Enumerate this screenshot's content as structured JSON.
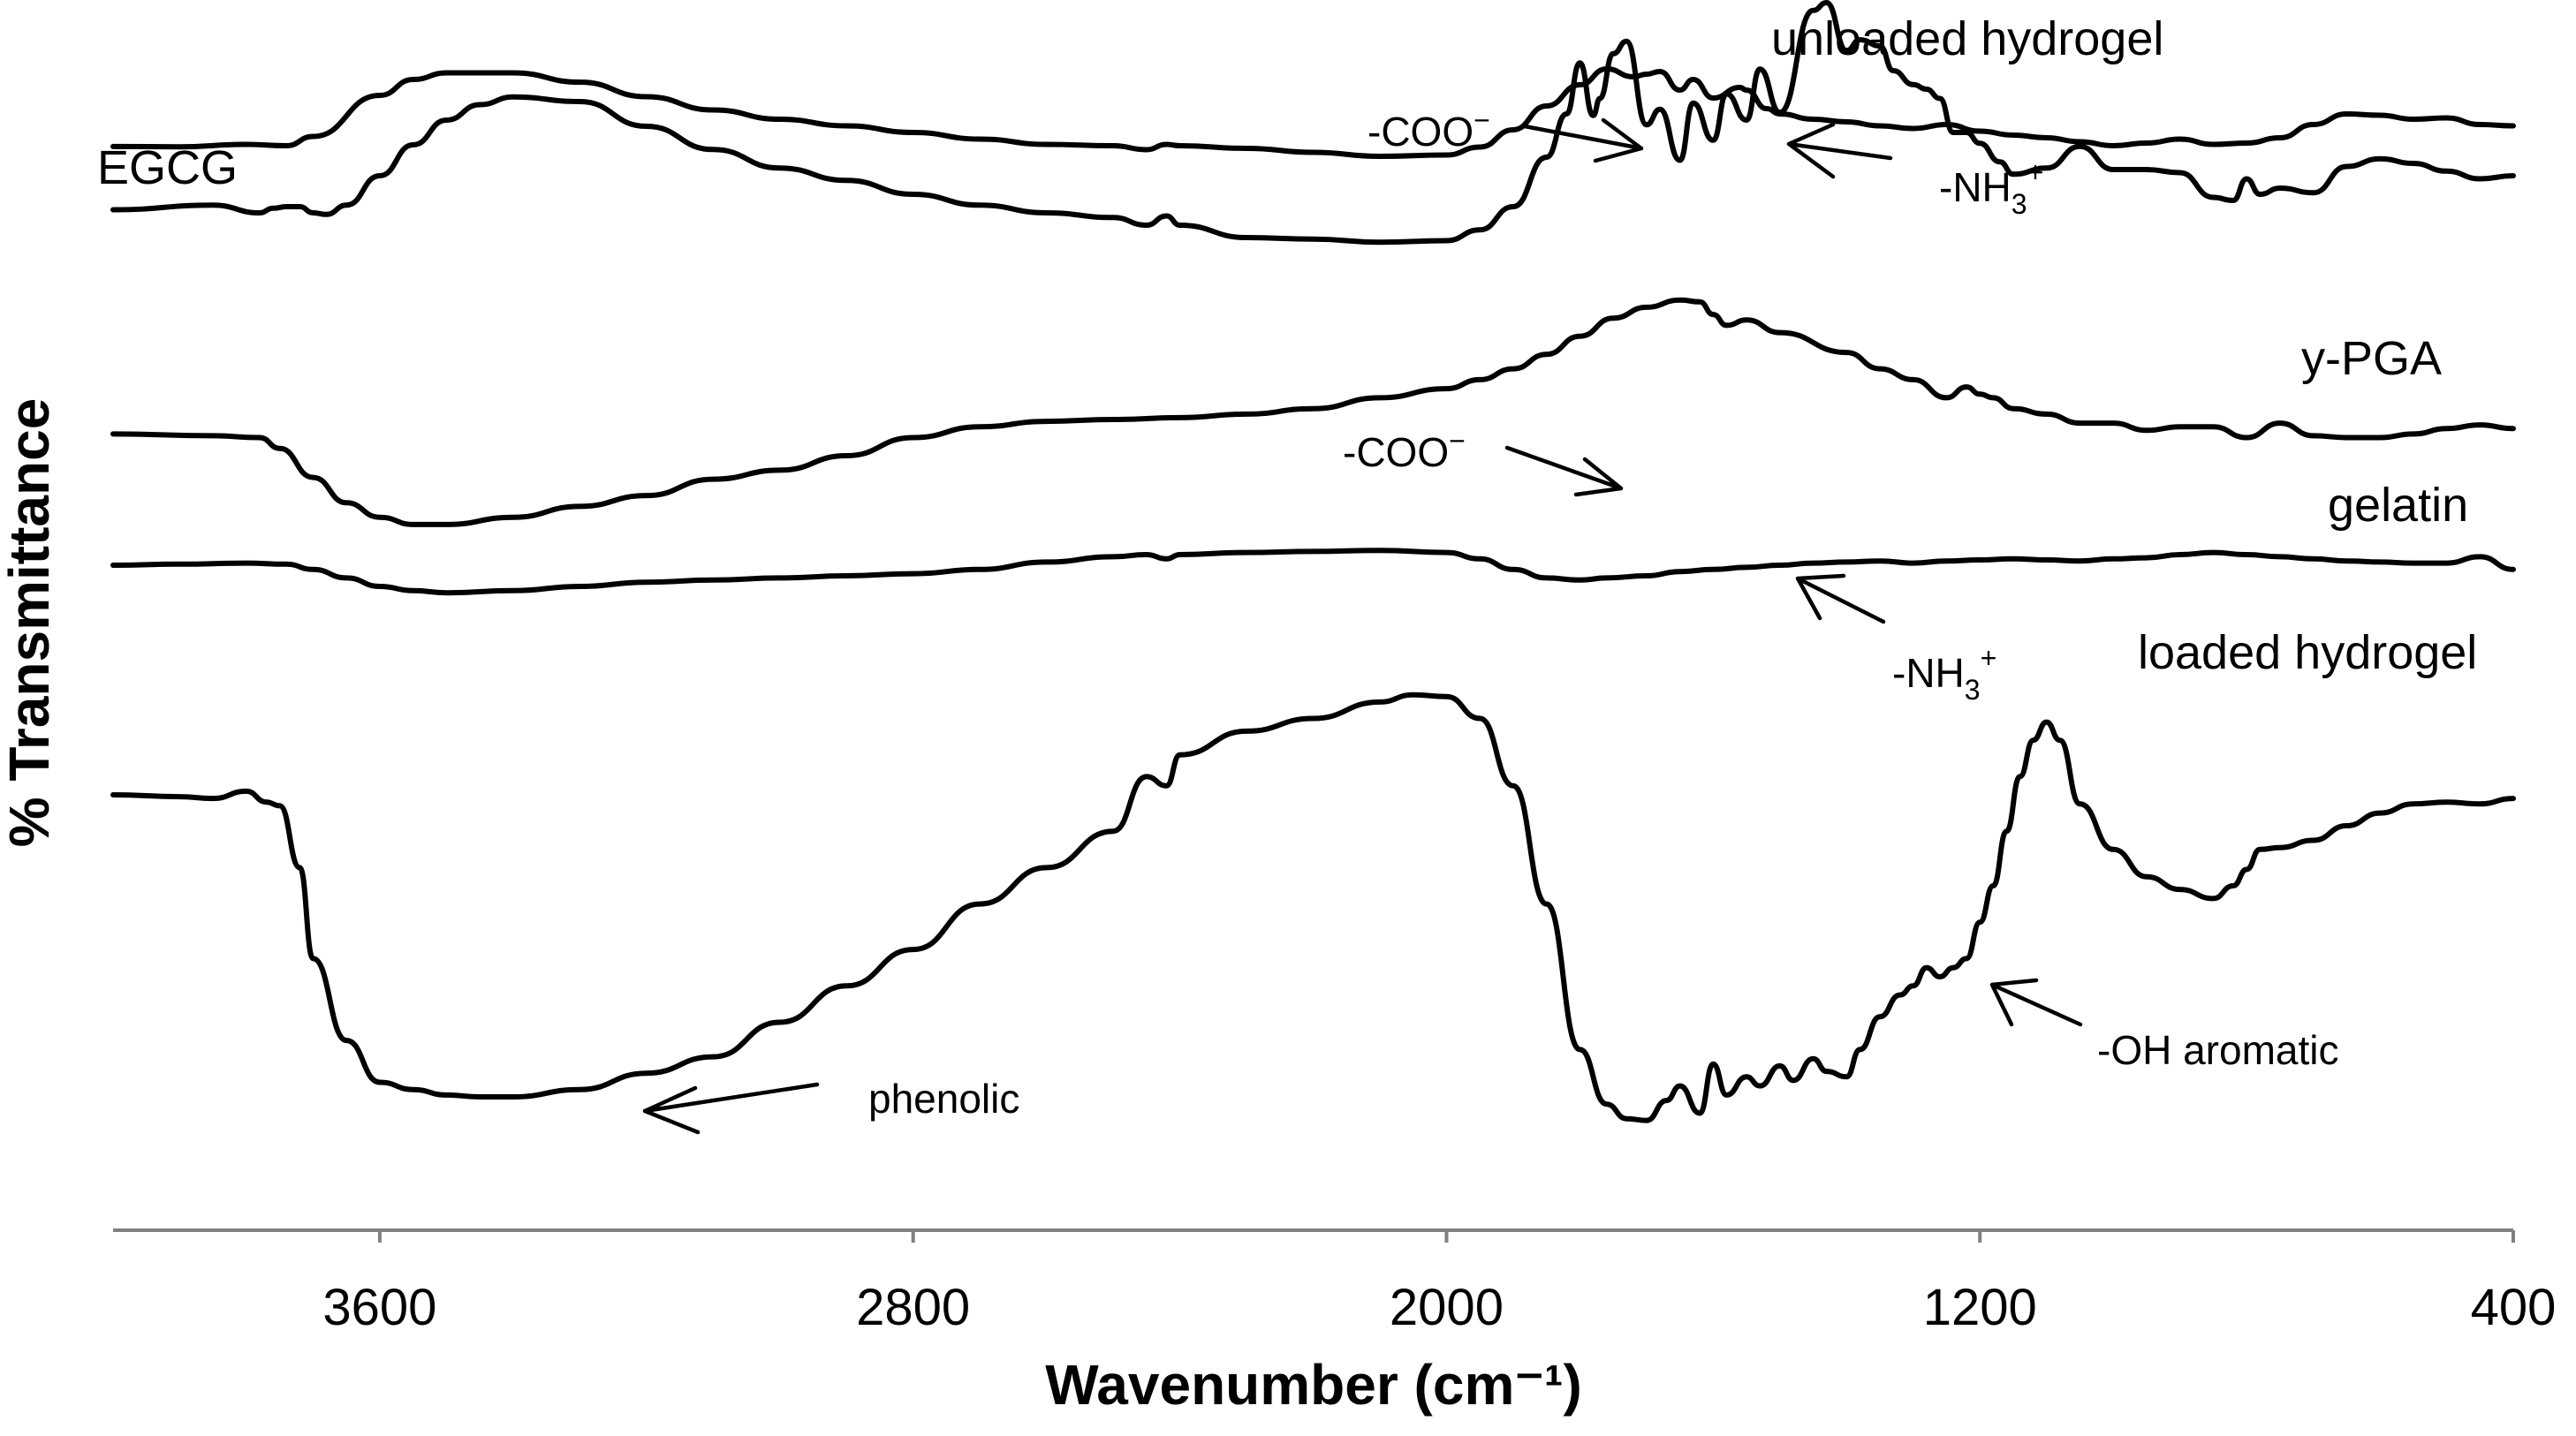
{
  "chart_data": {
    "type": "line",
    "title": "",
    "xlabel": "Wavenumber (cm⁻¹)",
    "ylabel": "% Transmittance",
    "xlim": [
      4000,
      400
    ],
    "xticks": [
      3600,
      2800,
      2000,
      1200,
      400
    ],
    "x_reversed": true,
    "y_units": "arbitrary (stacked offsets)",
    "grid": false,
    "series": [
      {
        "name": "unloaded hydrogel",
        "x": [
          4000,
          3900,
          3800,
          3740,
          3700,
          3600,
          3550,
          3500,
          3400,
          3300,
          3200,
          3100,
          3000,
          2900,
          2800,
          2700,
          2600,
          2500,
          2450,
          2420,
          2400,
          2300,
          2200,
          2100,
          2000,
          1950,
          1900,
          1850,
          1800,
          1760,
          1720,
          1700,
          1680,
          1650,
          1630,
          1600,
          1560,
          1550,
          1520,
          1500,
          1450,
          1400,
          1350,
          1300,
          1250,
          1200,
          1150,
          1100,
          1050,
          1000,
          950,
          900,
          850,
          800,
          750,
          700,
          650,
          600,
          550,
          500,
          450,
          400
        ],
        "y": [
          0.7,
          0.6,
          1.5,
          1.0,
          4.5,
          20.0,
          26.0,
          28.5,
          28.5,
          25.0,
          19.5,
          14.5,
          11.0,
          8.5,
          6.0,
          3.5,
          1.5,
          1.0,
          -0.5,
          1.5,
          1.0,
          0.0,
          -1.5,
          -3.0,
          -2.5,
          0.5,
          7.0,
          16.0,
          24.0,
          30.0,
          27.0,
          28.0,
          29.0,
          22.0,
          26.0,
          19.0,
          23.0,
          22.0,
          15.0,
          13.0,
          11.0,
          10.0,
          8.5,
          7.5,
          9.0,
          6.5,
          5.0,
          4.0,
          2.5,
          1.0,
          2.0,
          3.5,
          1.5,
          2.0,
          4.0,
          9.0,
          13.0,
          12.5,
          11.0,
          11.5,
          9.0,
          8.5
        ]
      },
      {
        "name": "EGCG",
        "x": [
          4000,
          3850,
          3780,
          3760,
          3740,
          3720,
          3700,
          3680,
          3650,
          3600,
          3550,
          3500,
          3450,
          3400,
          3300,
          3200,
          3100,
          3000,
          2900,
          2800,
          2700,
          2600,
          2500,
          2450,
          2420,
          2400,
          2300,
          2200,
          2100,
          2000,
          1950,
          1900,
          1850,
          1820,
          1800,
          1780,
          1770,
          1750,
          1730,
          1700,
          1680,
          1650,
          1630,
          1600,
          1580,
          1550,
          1530,
          1500,
          1450,
          1430,
          1400,
          1380,
          1350,
          1330,
          1300,
          1280,
          1260,
          1240,
          1220,
          1200,
          1170,
          1150,
          1100,
          1050,
          1000,
          950,
          900,
          850,
          820,
          800,
          780,
          750,
          700,
          650,
          600,
          550,
          500,
          450,
          400
        ],
        "y": [
          46,
          49,
          44,
          47,
          48,
          48,
          44,
          43,
          49,
          68,
          88,
          104,
          114,
          119,
          116,
          100,
          85,
          73,
          65,
          56,
          49,
          44,
          41,
          36,
          42,
          36,
          28,
          27,
          25,
          26,
          33,
          48,
          80,
          108,
          141,
          107,
          118,
          147,
          155,
          101,
          111,
          78,
          115,
          91,
          121,
          104,
          137,
          109,
          175,
          180,
          149,
          156,
          152,
          136,
          127,
          124,
          118,
          96,
          96,
          89,
          77,
          69,
          73,
          87,
          72,
          72,
          70,
          54,
          52,
          66,
          56,
          60,
          57,
          74,
          79,
          76,
          71,
          66,
          68
        ]
      },
      {
        "name": "y-PGA",
        "x": [
          4000,
          3850,
          3780,
          3750,
          3700,
          3650,
          3600,
          3550,
          3500,
          3400,
          3300,
          3200,
          3100,
          3000,
          2900,
          2800,
          2700,
          2600,
          2500,
          2400,
          2300,
          2200,
          2100,
          2000,
          1950,
          1900,
          1850,
          1800,
          1750,
          1700,
          1650,
          1620,
          1600,
          1580,
          1550,
          1500,
          1400,
          1350,
          1300,
          1250,
          1220,
          1200,
          1180,
          1150,
          1100,
          1050,
          1000,
          950,
          900,
          850,
          800,
          750,
          700,
          650,
          600,
          550,
          500,
          450,
          400
        ],
        "y": [
          -8,
          -9,
          -10,
          -16,
          -32,
          -46,
          -54,
          -58,
          -58,
          -54,
          -48,
          -42,
          -33,
          -28,
          -20,
          -10,
          -4,
          -1,
          0,
          1,
          3,
          6,
          12,
          17,
          22,
          28,
          36,
          46,
          56,
          62,
          66,
          65,
          58,
          52,
          55,
          48,
          37,
          28,
          22,
          12,
          18,
          14,
          12,
          6,
          3,
          -2,
          -2,
          -6,
          -4,
          -4,
          -10,
          -2,
          -9,
          -10,
          -10,
          -8,
          -5,
          -3,
          -5
        ]
      },
      {
        "name": "gelatin",
        "x": [
          4000,
          3900,
          3800,
          3740,
          3700,
          3650,
          3600,
          3550,
          3500,
          3400,
          3300,
          3200,
          3100,
          3000,
          2900,
          2800,
          2700,
          2600,
          2500,
          2450,
          2420,
          2400,
          2300,
          2200,
          2100,
          2000,
          1950,
          1900,
          1850,
          1800,
          1760,
          1700,
          1650,
          1600,
          1550,
          1500,
          1450,
          1400,
          1350,
          1300,
          1250,
          1200,
          1150,
          1100,
          1050,
          1000,
          950,
          900,
          850,
          800,
          750,
          700,
          650,
          600,
          550,
          500,
          450,
          400
        ],
        "y": [
          0,
          0.5,
          1.0,
          0.5,
          -2,
          -6,
          -10,
          -12,
          -13,
          -12,
          -10,
          -8,
          -7,
          -6,
          -5,
          -4,
          -2,
          1.5,
          4,
          5,
          3,
          5,
          6,
          6.5,
          7,
          6,
          3,
          -2,
          -6,
          -7,
          -6,
          -5,
          -3,
          -2,
          -1,
          0,
          1,
          1.5,
          2,
          1,
          2,
          2.5,
          3,
          2.5,
          2,
          3,
          3.5,
          5,
          6,
          5,
          4,
          3,
          2,
          1.5,
          1,
          1,
          4,
          -2
        ]
      },
      {
        "name": "loaded hydrogel",
        "x": [
          4000,
          3900,
          3850,
          3800,
          3770,
          3750,
          3720,
          3700,
          3650,
          3600,
          3550,
          3500,
          3450,
          3400,
          3300,
          3200,
          3100,
          3000,
          2900,
          2800,
          2700,
          2600,
          2500,
          2450,
          2420,
          2400,
          2300,
          2200,
          2100,
          2050,
          2000,
          1950,
          1900,
          1850,
          1800,
          1760,
          1730,
          1700,
          1670,
          1650,
          1620,
          1600,
          1580,
          1550,
          1530,
          1500,
          1480,
          1450,
          1430,
          1400,
          1380,
          1350,
          1320,
          1300,
          1280,
          1260,
          1240,
          1220,
          1200,
          1180,
          1160,
          1140,
          1120,
          1100,
          1080,
          1050,
          1000,
          950,
          900,
          850,
          820,
          800,
          780,
          750,
          700,
          650,
          600,
          550,
          500,
          450,
          400
        ],
        "y": [
          0,
          -1,
          -2,
          2,
          -4,
          -6,
          -40,
          -90,
          -135,
          -158,
          -162,
          -165,
          -166,
          -166,
          -162,
          -153,
          -144,
          -125,
          -105,
          -85,
          -60,
          -40,
          -20,
          10,
          5,
          22,
          35,
          42,
          51,
          55,
          54,
          42,
          5,
          -60,
          -140,
          -170,
          -178,
          -179,
          -168,
          -160,
          -175,
          -148,
          -165,
          -155,
          -160,
          -149,
          -157,
          -145,
          -152,
          -155,
          -140,
          -122,
          -110,
          -105,
          -95,
          -100,
          -95,
          -90,
          -70,
          -50,
          -20,
          10,
          30,
          40,
          30,
          -5,
          -30,
          -45,
          -52,
          -57,
          -50,
          -41,
          -30,
          -29,
          -25,
          -17,
          -10,
          -5,
          -4,
          -5,
          -2
        ]
      }
    ],
    "series_labels": [
      "unloaded hydrogel",
      "EGCG",
      "y-PGA",
      "gelatin",
      "loaded hydrogel"
    ],
    "annotations": [
      {
        "id": "coo1",
        "text": "-COO",
        "sup": "−",
        "x": 1700
      },
      {
        "id": "nh1",
        "text": "-NH",
        "sub": "3",
        "sup": "+",
        "x": 1520
      },
      {
        "id": "coo2",
        "text": "-COO",
        "sup": "−",
        "x": 1740
      },
      {
        "id": "nh2",
        "text": "-NH",
        "sub": "3",
        "sup": "+",
        "x": 1520
      },
      {
        "id": "phenolic",
        "text": "phenolic",
        "x": 3200
      },
      {
        "id": "ohar",
        "text": "-OH aromatic",
        "x": 1200
      }
    ]
  }
}
